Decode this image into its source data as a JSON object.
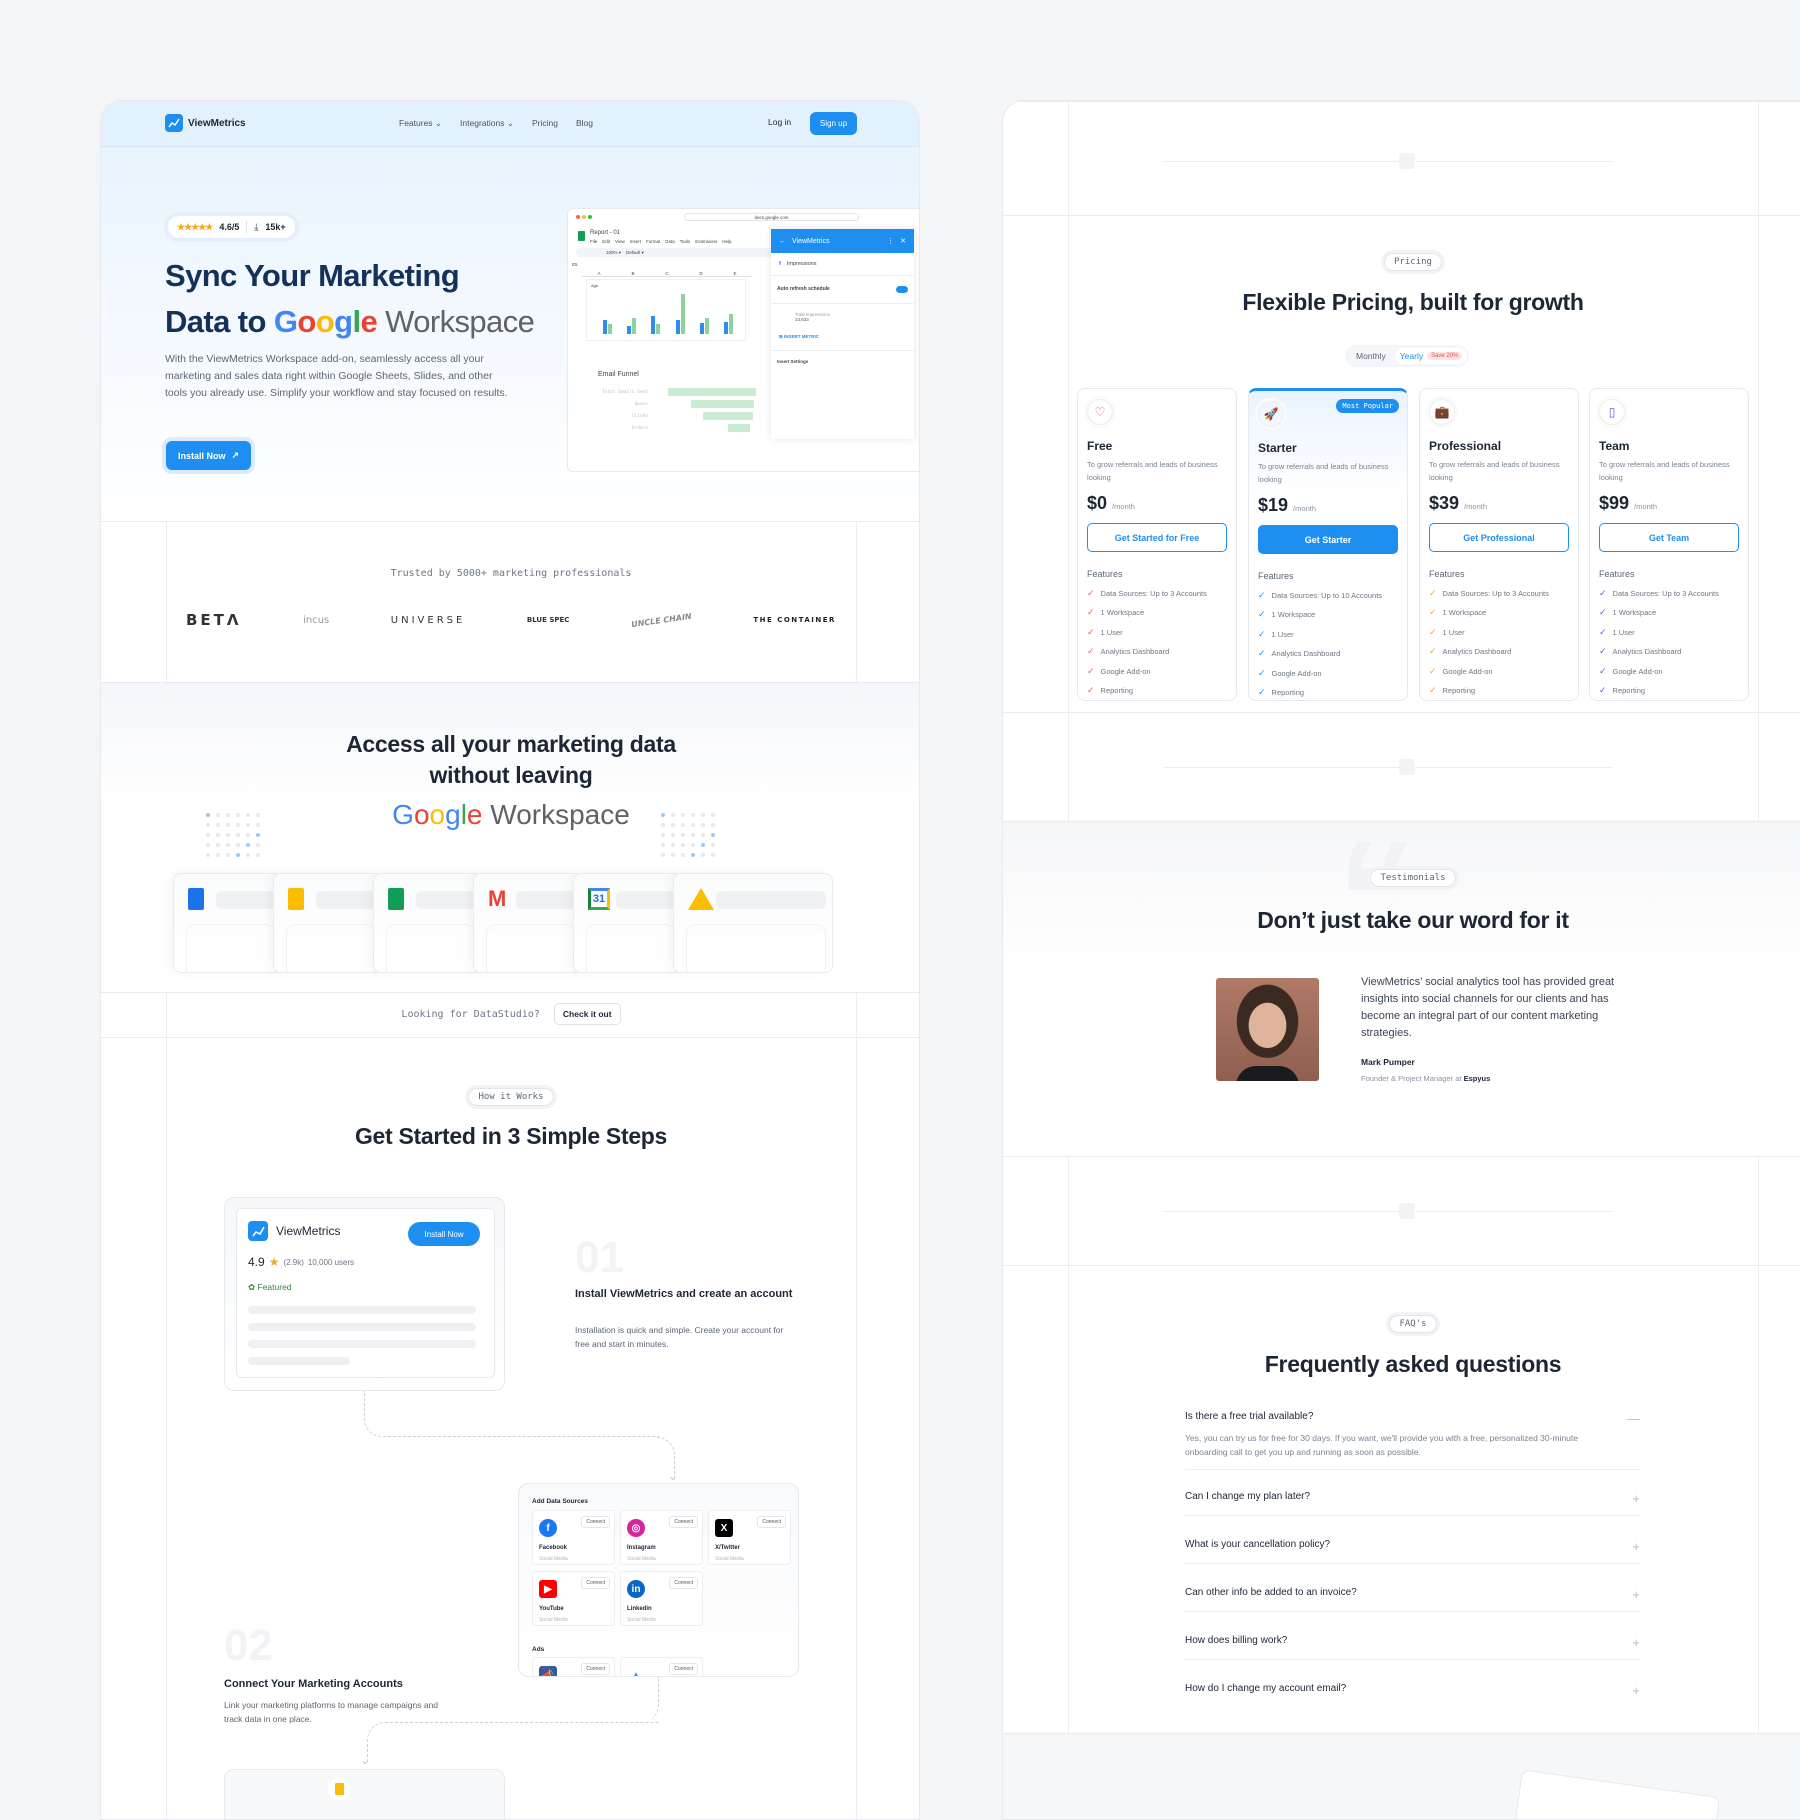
{
  "colors": {
    "accent": "#1e8ff0",
    "text": "#1d2634",
    "free": "#ef5b5b",
    "starter": "#1e8ff0",
    "professional": "#f5a623",
    "team": "#7c4ddb"
  },
  "nav": {
    "brand": "ViewMetrics",
    "links": [
      "Features",
      "Integrations",
      "Pricing",
      "Blog"
    ],
    "login": "Log in",
    "signup": "Sign up"
  },
  "hero": {
    "rating": "4.6/5",
    "downloads": "15k+",
    "title_line1": "Sync Your Marketing",
    "title_line2_prefix": "Data to",
    "google": [
      "G",
      "o",
      "o",
      "g",
      "l",
      "e"
    ],
    "workspace": "Workspace",
    "description": "With the ViewMetrics Workspace add-on, seamlessly access all your marketing and sales data right within Google Sheets, Slides, and other tools you already use. Simplify your workflow and stay focused on results.",
    "cta": "Install Now"
  },
  "mock": {
    "url": "docs.google.com",
    "doc_title": "Report - 01",
    "menu": [
      "File",
      "Edit",
      "View",
      "Insert",
      "Format",
      "Data",
      "Tools",
      "Extensions",
      "Help"
    ],
    "zoom": "100%",
    "font": "Default",
    "cell": "E5",
    "columns": [
      "A",
      "B",
      "C",
      "D",
      "E"
    ],
    "chart_label": "Age",
    "funnel_title": "Email Funnel",
    "funnel": [
      "Total Emails Sent",
      "Opens",
      "Clicks",
      "Orders"
    ],
    "sidebar_title": "ViewMetrics",
    "metric": "Impressions",
    "auto_refresh": "Auto refresh schedule",
    "total_label": "Total Impressions",
    "total_value": "23,633",
    "insert_metric": "INSERT METRIC",
    "insert_settings": "Insert Settings"
  },
  "trusted": {
    "label": "Trusted by 5000+ marketing professionals",
    "logos": [
      "BETΛ",
      "incus",
      "UNIVERSE",
      "BLUE SPEC",
      "UNCLE CHAIN",
      "THE CONTAINER"
    ]
  },
  "access": {
    "title_line1": "Access all your marketing data",
    "title_line2": "without leaving",
    "workspace": "Workspace",
    "apps": [
      "docs-icon",
      "slides-icon",
      "sheets-icon",
      "gmail-icon",
      "calendar-icon",
      "drive-icon"
    ],
    "calendar_day": "31"
  },
  "datastudio": {
    "label": "Looking for DataStudio?",
    "button": "Check it out"
  },
  "steps": {
    "pill": "How it Works",
    "title": "Get Started in 3 Simple Steps",
    "card": {
      "brand": "ViewMetrics",
      "install": "Install Now",
      "rating": "4.9",
      "reviews": "(2.9k)",
      "users": "10,000 users",
      "featured": "Featured"
    },
    "step1": {
      "num": "01",
      "title": "Install ViewMetrics and create an account",
      "desc": "Installation is quick and simple. Create your account for free and start in minutes."
    },
    "step2": {
      "num": "02",
      "title": "Connect Your Marketing Accounts",
      "desc": "Link your marketing platforms to manage campaigns and track data in one place."
    },
    "sources": {
      "title": "Add Data Sources",
      "connect": "Connect",
      "ads": "Ads",
      "items": [
        {
          "name": "Facebook",
          "type": "Social Media",
          "color": "#1877f2",
          "glyph": "f"
        },
        {
          "name": "Instagram",
          "type": "Social Media",
          "color": "#d6249f",
          "glyph": "◎"
        },
        {
          "name": "X/Twitter",
          "type": "Social Media",
          "color": "#000000",
          "glyph": "X"
        },
        {
          "name": "YouTube",
          "type": "Social Media",
          "color": "#ff0000",
          "glyph": "▶"
        },
        {
          "name": "Linkedin",
          "type": "Social Media",
          "color": "#0a66c2",
          "glyph": "in"
        }
      ]
    }
  },
  "pricing": {
    "pill": "Pricing",
    "title": "Flexible Pricing, built for growth",
    "toggle": {
      "monthly": "Monthly",
      "yearly": "Yearly",
      "save": "Save 20%",
      "selected": "Yearly"
    },
    "features_label": "Features",
    "popular": "Most Popular",
    "plans": [
      {
        "name": "Free",
        "icon": "heart-icon",
        "glyph": "♡",
        "desc": "To grow referrals and leads of business looking",
        "price": "$0",
        "period": "/month",
        "cta": "Get Started for Free",
        "color": "#ef5b5b",
        "features": [
          "Data Sources:  Up to 3 Accounts",
          "1 Workspace",
          "1 User",
          "Analytics Dashboard",
          "Google Add-on",
          "Reporting"
        ]
      },
      {
        "name": "Starter",
        "icon": "rocket-icon",
        "glyph": "🚀",
        "desc": "To grow referrals and leads of business looking",
        "price": "$19",
        "period": "/month",
        "cta": "Get Starter",
        "color": "#1e8ff0",
        "popular": true,
        "features": [
          "Data Sources:  Up to 10 Accounts",
          "1 Workspace",
          "1 User",
          "Analytics Dashboard",
          "Google Add-on",
          "Reporting"
        ]
      },
      {
        "name": "Professional",
        "icon": "briefcase-icon",
        "glyph": "💼",
        "desc": "To grow referrals and leads of business looking",
        "price": "$39",
        "period": "/month",
        "cta": "Get Professional",
        "color": "#f5a623",
        "features": [
          "Data Sources:  Up to 3 Accounts",
          "1 Workspace",
          "1 User",
          "Analytics Dashboard",
          "Google Add-on",
          "Reporting"
        ]
      },
      {
        "name": "Team",
        "icon": "building-icon",
        "glyph": "▯",
        "desc": "To grow referrals and leads of business looking",
        "price": "$99",
        "period": "/month",
        "cta": "Get Team",
        "color": "#7c4ddb",
        "features": [
          "Data Sources:  Up to 3 Accounts",
          "1 Workspace",
          "1 User",
          "Analytics Dashboard",
          "Google Add-on",
          "Reporting"
        ]
      }
    ]
  },
  "testimonials": {
    "pill": "Testimonials",
    "title": "Don’t just take our word for it",
    "quote": "ViewMetrics’ social analytics tool has provided great insights into social channels for our clients and has become an integral part of our content marketing strategies.",
    "name": "Mark Pumper",
    "role": "Founder & Project Manager at",
    "company": "Espyus"
  },
  "faq": {
    "pill": "FAQ's",
    "title": "Frequently asked questions",
    "items": [
      {
        "q": "Is there a free trial available?",
        "a": "Yes, you can try us for free for 30 days. If you want, we'll provide you with a free, personalized 30-minute onboarding call to get you up and running as soon as possible.",
        "open": true
      },
      {
        "q": "Can I change my plan later?"
      },
      {
        "q": "What is your cancellation policy?"
      },
      {
        "q": "Can other info be added to an invoice?"
      },
      {
        "q": "How does billing work?"
      },
      {
        "q": "How do I change my account email?"
      }
    ]
  }
}
